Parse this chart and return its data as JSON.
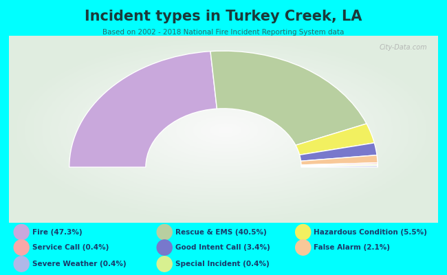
{
  "title": "Incident types in Turkey Creek, LA",
  "subtitle": "Based on 2002 - 2018 National Fire Incident Reporting System data",
  "background_color": "#00FFFF",
  "chart_bg_color": "#e0ece0",
  "segments": [
    {
      "label": "Fire",
      "pct": 47.3,
      "color": "#c9a8dc"
    },
    {
      "label": "Rescue & EMS",
      "pct": 40.5,
      "color": "#b8cfa0"
    },
    {
      "label": "Hazardous Condition",
      "pct": 5.5,
      "color": "#f2f060"
    },
    {
      "label": "Good Intent Call",
      "pct": 3.4,
      "color": "#7878cc"
    },
    {
      "label": "False Alarm",
      "pct": 2.1,
      "color": "#f8c898"
    },
    {
      "label": "Service Call",
      "pct": 0.4,
      "color": "#f8a8a8"
    },
    {
      "label": "Special Incident",
      "pct": 0.4,
      "color": "#d8f090"
    },
    {
      "label": "Severe Weather",
      "pct": 0.4,
      "color": "#b0b8e8"
    }
  ],
  "legend_items": [
    {
      "label": "Fire (47.3%)",
      "color": "#c9a8dc"
    },
    {
      "label": "Service Call (0.4%)",
      "color": "#f8a8a8"
    },
    {
      "label": "Severe Weather (0.4%)",
      "color": "#b0b8e8"
    },
    {
      "label": "Rescue & EMS (40.5%)",
      "color": "#b8cfa0"
    },
    {
      "label": "Good Intent Call (3.4%)",
      "color": "#7878cc"
    },
    {
      "label": "Special Incident (0.4%)",
      "color": "#d8f090"
    },
    {
      "label": "Hazardous Condition (5.5%)",
      "color": "#f2f060"
    },
    {
      "label": "False Alarm (2.1%)",
      "color": "#f8c898"
    }
  ],
  "watermark": "City-Data.com",
  "title_color": "#1a3a3a",
  "subtitle_color": "#2a6a6a",
  "legend_color": "#1a3a6a"
}
